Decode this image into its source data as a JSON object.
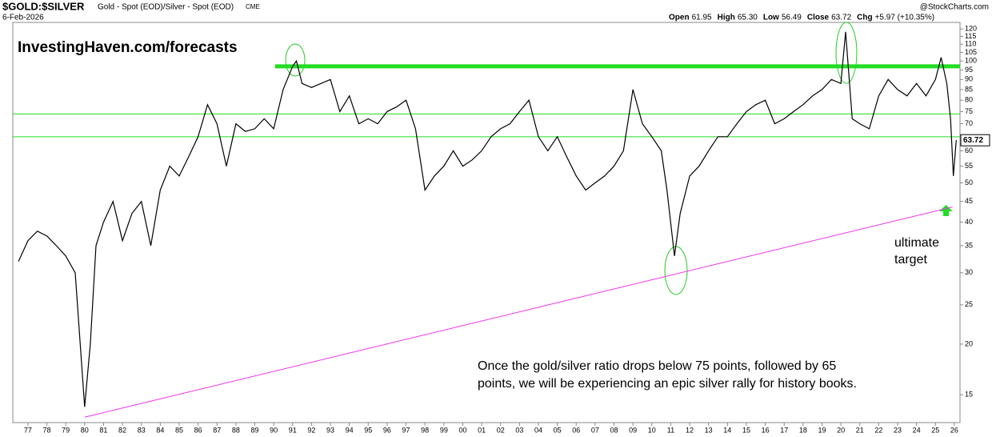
{
  "chart_data": {
    "type": "line",
    "symbol": "$GOLD:$SILVER",
    "description": "Gold - Spot (EOD)/Silver - Spot (EOD)",
    "exchange": "CME",
    "date": "6-Feb-2026",
    "source": "@StockCharts.com",
    "quote": [
      {
        "label": "Open",
        "value": "61.95"
      },
      {
        "label": "High",
        "value": "65.30"
      },
      {
        "label": "Low",
        "value": "56.49"
      },
      {
        "label": "Close",
        "value": "63.72"
      },
      {
        "label": "Chg",
        "value": "+5.97 (+10.35%)"
      }
    ],
    "watermark": "InvestingHaven.com/forecasts",
    "annotation_lines": [
      "Once the gold/silver ratio drops below 75 points, followed by 65",
      "points, we will be experiencing an epic silver rally for history books."
    ],
    "target_label": [
      "ultimate",
      "target"
    ],
    "log_scale": true,
    "grid": false,
    "color": "#000000",
    "x": [
      1976.5,
      1977,
      1977.5,
      1978,
      1978.5,
      1979,
      1979.5,
      1980,
      1980.3,
      1980.6,
      1981,
      1981.5,
      1982,
      1982.5,
      1983,
      1983.5,
      1984,
      1984.5,
      1985,
      1985.5,
      1986,
      1986.5,
      1987,
      1987.5,
      1988,
      1988.5,
      1989,
      1989.5,
      1990,
      1990.5,
      1991,
      1991.2,
      1991.5,
      1992,
      1992.5,
      1993,
      1993.5,
      1994,
      1994.5,
      1995,
      1995.5,
      1996,
      1996.5,
      1997,
      1997.5,
      1998,
      1998.5,
      1999,
      1999.5,
      2000,
      2000.5,
      2001,
      2001.5,
      2002,
      2002.5,
      2003,
      2003.5,
      2004,
      2004.5,
      2005,
      2005.5,
      2006,
      2006.5,
      2007,
      2007.5,
      2008,
      2008.5,
      2009,
      2009.5,
      2010,
      2010.5,
      2010.8,
      2011.2,
      2011.5,
      2012,
      2012.5,
      2013,
      2013.5,
      2014,
      2014.5,
      2015,
      2015.5,
      2016,
      2016.5,
      2017,
      2017.5,
      2018,
      2018.5,
      2019,
      2019.5,
      2020,
      2020.25,
      2020.6,
      2021,
      2021.5,
      2022,
      2022.5,
      2023,
      2023.5,
      2024,
      2024.5,
      2025,
      2025.3,
      2025.6,
      2025.8,
      2025.95,
      2026.1
    ],
    "values": [
      32,
      36,
      38,
      37,
      35,
      33,
      30,
      14,
      20,
      35,
      40,
      45,
      36,
      42,
      45,
      35,
      48,
      55,
      52,
      58,
      65,
      78,
      70,
      55,
      70,
      67,
      68,
      72,
      68,
      85,
      97,
      100,
      88,
      86,
      88,
      90,
      75,
      82,
      70,
      72,
      70,
      75,
      77,
      80,
      68,
      48,
      52,
      55,
      60,
      55,
      57,
      60,
      65,
      68,
      70,
      75,
      80,
      65,
      60,
      65,
      58,
      52,
      48,
      50,
      52,
      55,
      60,
      85,
      70,
      65,
      60,
      48,
      33,
      42,
      52,
      55,
      60,
      65,
      65,
      70,
      75,
      78,
      80,
      70,
      72,
      75,
      78,
      82,
      85,
      90,
      88,
      118,
      72,
      70,
      68,
      82,
      90,
      85,
      82,
      88,
      82,
      90,
      102,
      88,
      72,
      52,
      63.72
    ],
    "last_value": 63.72,
    "hlines": [
      97,
      74,
      65
    ],
    "hline_color": "#22dd22",
    "trendline": {
      "x": [
        1980,
        2025.9
      ],
      "values": [
        13.2,
        43.6
      ],
      "color": "#ee33ee"
    },
    "xlim": [
      1976.2,
      2026.3
    ],
    "ylim": [
      12.8,
      124.5
    ],
    "xticks": [
      {
        "value": 1977,
        "label": "77"
      },
      {
        "value": 1978,
        "label": "78"
      },
      {
        "value": 1979,
        "label": "79"
      },
      {
        "value": 1980,
        "label": "80"
      },
      {
        "value": 1981,
        "label": "81"
      },
      {
        "value": 1982,
        "label": "82"
      },
      {
        "value": 1983,
        "label": "83"
      },
      {
        "value": 1984,
        "label": "84"
      },
      {
        "value": 1985,
        "label": "85"
      },
      {
        "value": 1986,
        "label": "86"
      },
      {
        "value": 1987,
        "label": "87"
      },
      {
        "value": 1988,
        "label": "88"
      },
      {
        "value": 1989,
        "label": "89"
      },
      {
        "value": 1990,
        "label": "90"
      },
      {
        "value": 1991,
        "label": "91"
      },
      {
        "value": 1992,
        "label": "92"
      },
      {
        "value": 1993,
        "label": "93"
      },
      {
        "value": 1994,
        "label": "94"
      },
      {
        "value": 1995,
        "label": "95"
      },
      {
        "value": 1996,
        "label": "96"
      },
      {
        "value": 1997,
        "label": "97"
      },
      {
        "value": 1998,
        "label": "98"
      },
      {
        "value": 1999,
        "label": "99"
      },
      {
        "value": 2000,
        "label": "00"
      },
      {
        "value": 2001,
        "label": "01"
      },
      {
        "value": 2002,
        "label": "02"
      },
      {
        "value": 2003,
        "label": "03"
      },
      {
        "value": 2004,
        "label": "04"
      },
      {
        "value": 2005,
        "label": "05"
      },
      {
        "value": 2006,
        "label": "06"
      },
      {
        "value": 2007,
        "label": "07"
      },
      {
        "value": 2008,
        "label": "08"
      },
      {
        "value": 2009,
        "label": "09"
      },
      {
        "value": 2010,
        "label": "10"
      },
      {
        "value": 2011,
        "label": "11"
      },
      {
        "value": 2012,
        "label": "12"
      },
      {
        "value": 2013,
        "label": "13"
      },
      {
        "value": 2014,
        "label": "14"
      },
      {
        "value": 2015,
        "label": "15"
      },
      {
        "value": 2016,
        "label": "16"
      },
      {
        "value": 2017,
        "label": "17"
      },
      {
        "value": 2018,
        "label": "18"
      },
      {
        "value": 2019,
        "label": "19"
      },
      {
        "value": 2020,
        "label": "20"
      },
      {
        "value": 2021,
        "label": "21"
      },
      {
        "value": 2022,
        "label": "22"
      },
      {
        "value": 2023,
        "label": "23"
      },
      {
        "value": 2024,
        "label": "24"
      },
      {
        "value": 2025,
        "label": "25"
      },
      {
        "value": 2026,
        "label": "26"
      }
    ],
    "yticks": [
      15,
      20,
      25,
      30,
      35,
      40,
      45,
      50,
      55,
      60,
      70,
      75,
      80,
      85,
      90,
      95,
      100,
      105,
      110,
      115,
      120
    ]
  }
}
